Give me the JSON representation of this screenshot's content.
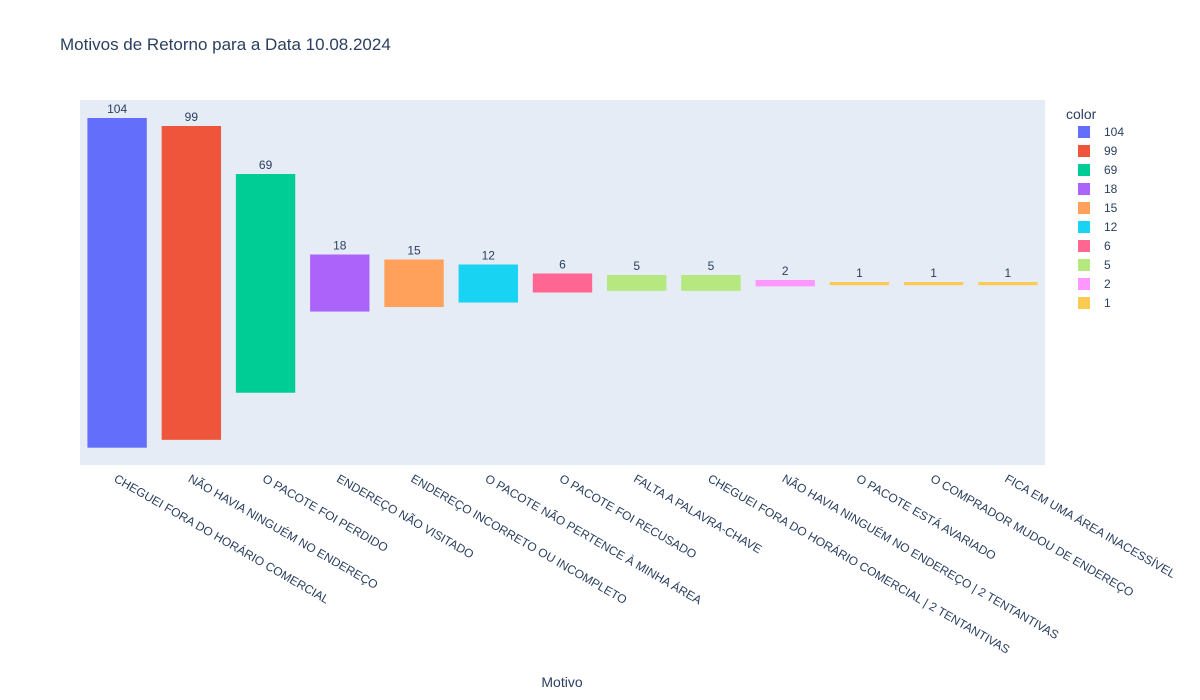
{
  "chart_data": {
    "type": "bar",
    "title": "Motivos de Retorno para a Data 10.08.2024",
    "xlabel": "Motivo",
    "ylabel": "",
    "legend": {
      "title": "color",
      "placement": "right",
      "entries": [
        {
          "label": "104",
          "color": "#636efa"
        },
        {
          "label": "99",
          "color": "#ef553b"
        },
        {
          "label": "69",
          "color": "#00cc96"
        },
        {
          "label": "18",
          "color": "#ab63fa"
        },
        {
          "label": "15",
          "color": "#ffa15a"
        },
        {
          "label": "12",
          "color": "#19d3f3"
        },
        {
          "label": "6",
          "color": "#ff6692"
        },
        {
          "label": "5",
          "color": "#b6e880"
        },
        {
          "label": "2",
          "color": "#ff97ff"
        },
        {
          "label": "1",
          "color": "#fecb52"
        }
      ]
    },
    "plot_background": "#e5ecf6",
    "categories": [
      "CHEGUEI FORA DO HORÁRIO COMERCIAL",
      "NÃO HAVIA NINGUÉM NO ENDEREÇO",
      "O PACOTE FOI PERDIDO",
      "ENDEREÇO NÃO VISITADO",
      "ENDEREÇO INCORRETO OU INCOMPLETO",
      "O PACOTE NÃO PERTENCE À MINHA ÁREA",
      "O PACOTE FOI RECUSADO",
      "FALTA A PALAVRA-CHAVE",
      "CHEGUEI FORA DO HORÁRIO COMERCIAL | 2 TENTANTIVAS",
      "NÃO HAVIA NINGUÉM NO ENDEREÇO | 2 TENTANTIVAS",
      "O PACOTE ESTÁ AVARIADO",
      "O COMPRADOR MUDOU DE ENDEREÇO",
      "FICA EM UMA ÁREA INACESSÍVEL"
    ],
    "values": [
      104,
      99,
      69,
      18,
      15,
      12,
      6,
      5,
      5,
      2,
      1,
      1,
      1
    ],
    "data_labels": [
      "104",
      "99",
      "69",
      "18",
      "15",
      "12",
      "6",
      "5",
      "5",
      "2",
      "1",
      "1",
      "1"
    ],
    "colors": [
      "#636efa",
      "#ef553b",
      "#00cc96",
      "#ab63fa",
      "#ffa15a",
      "#19d3f3",
      "#ff6692",
      "#b6e880",
      "#b6e880",
      "#ff97ff",
      "#fecb52",
      "#fecb52",
      "#fecb52"
    ],
    "grid": false
  }
}
